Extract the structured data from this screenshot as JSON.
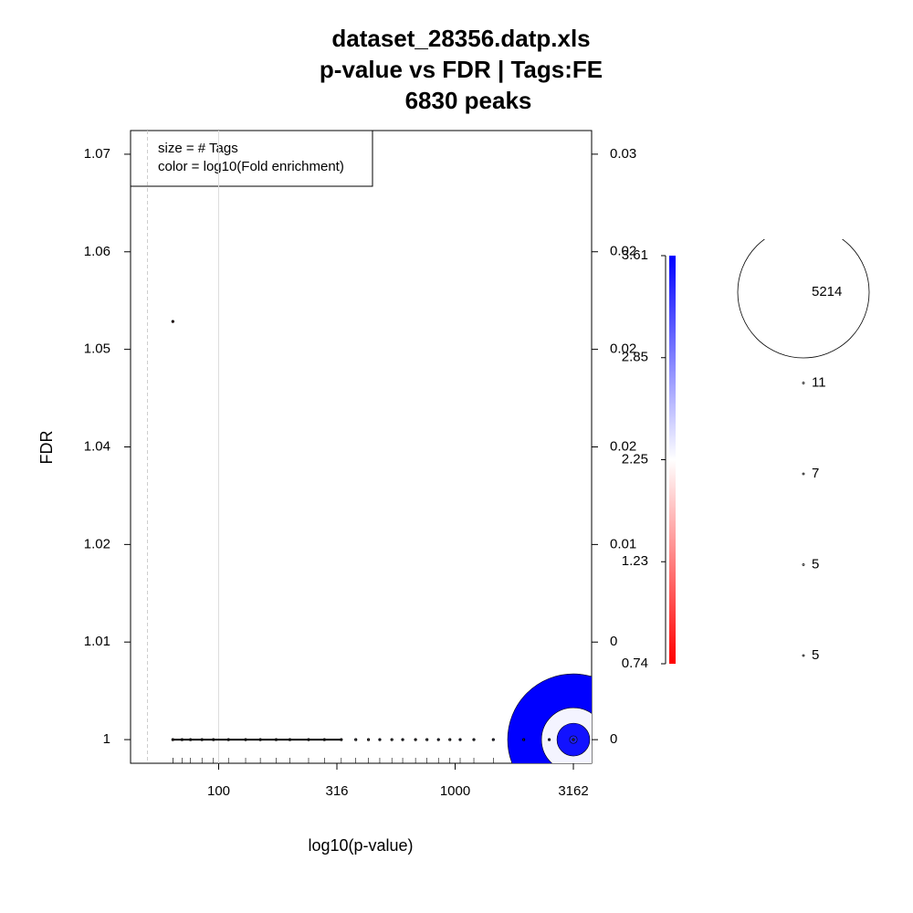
{
  "chart_data": {
    "type": "scatter",
    "title": [
      "dataset_28356.datp.xls",
      "p-value vs FDR | Tags:FE",
      "6830 peaks"
    ],
    "x_label": "log10(p-value)",
    "y_label": "FDR",
    "x_log": true,
    "xlim": [
      42.4,
      3777
    ],
    "xticks": [
      100,
      {
        "value": 316.228,
        "label": "316"
      },
      1000,
      {
        "value": 3162.28,
        "label": "3162"
      }
    ],
    "ylim": [
      0.99717,
      1.07283
    ],
    "yticks": [
      1,
      {
        "value": 1.011667,
        "label": "1.01"
      },
      {
        "value": 1.023333,
        "label": "1.02"
      },
      {
        "value": 1.035,
        "label": "1.04"
      },
      {
        "value": 1.046667,
        "label": "1.05"
      },
      {
        "value": 1.058333,
        "label": "1.06"
      },
      1.07
    ],
    "y2lim": [
      -0.00121,
      0.03121
    ],
    "y2ticks": [
      0,
      {
        "value": 0.005,
        "label": "0"
      },
      0.01,
      {
        "value": 0.015,
        "label": "0.02"
      },
      0.02,
      {
        "value": 0.025,
        "label": "0.02"
      },
      0.03
    ],
    "reference_lines": [
      {
        "value": 50,
        "dashed": true
      },
      {
        "value": 100,
        "dashed": false
      }
    ],
    "legend_text": [
      "size = # Tags",
      "color = log10(Fold enrichment)"
    ],
    "colorbar_ticks": [
      3.61,
      2.85,
      2.25,
      1.23,
      0.74
    ],
    "size_legend": [
      5214,
      11,
      7,
      5,
      5
    ],
    "series": [
      {
        "x": [
          3162,
          3162,
          3162,
          3162,
          3162,
          64,
          64,
          70,
          76,
          85,
          95,
          110,
          130,
          150,
          175,
          200,
          240,
          280,
          330,
          380,
          430,
          480,
          540,
          600,
          680,
          760,
          850,
          950,
          1050,
          1200,
          1450,
          1950,
          2500
        ],
        "values": [
          1,
          1,
          1,
          1,
          1,
          1.05,
          1,
          1,
          1,
          1,
          1,
          1,
          1,
          1,
          1,
          1,
          1,
          1,
          1,
          1,
          1,
          1,
          1,
          1,
          1,
          1,
          1,
          1,
          1,
          1,
          1,
          1,
          1
        ],
        "sizes": [
          5214,
          2530,
          1300,
          300,
          11,
          5,
          7,
          5,
          6,
          5,
          7,
          5,
          6,
          5,
          5,
          7,
          6,
          5,
          5,
          6,
          5,
          7,
          5,
          6,
          5,
          5,
          6,
          5,
          7,
          5,
          6,
          7,
          11
        ],
        "fe": [
          3.61,
          2.3,
          3.5,
          3.4,
          2.25,
          0.74,
          1.23,
          1.5,
          2.0,
          1.8,
          2.25,
          1.4,
          2.6,
          1.9,
          2.1,
          2.85,
          2.3,
          1.7,
          2.0,
          2.4,
          1.9,
          2.7,
          2.2,
          2.5,
          2.0,
          2.3,
          2.6,
          2.1,
          2.9,
          2.4,
          2.7,
          3.0,
          3.2
        ]
      }
    ]
  }
}
